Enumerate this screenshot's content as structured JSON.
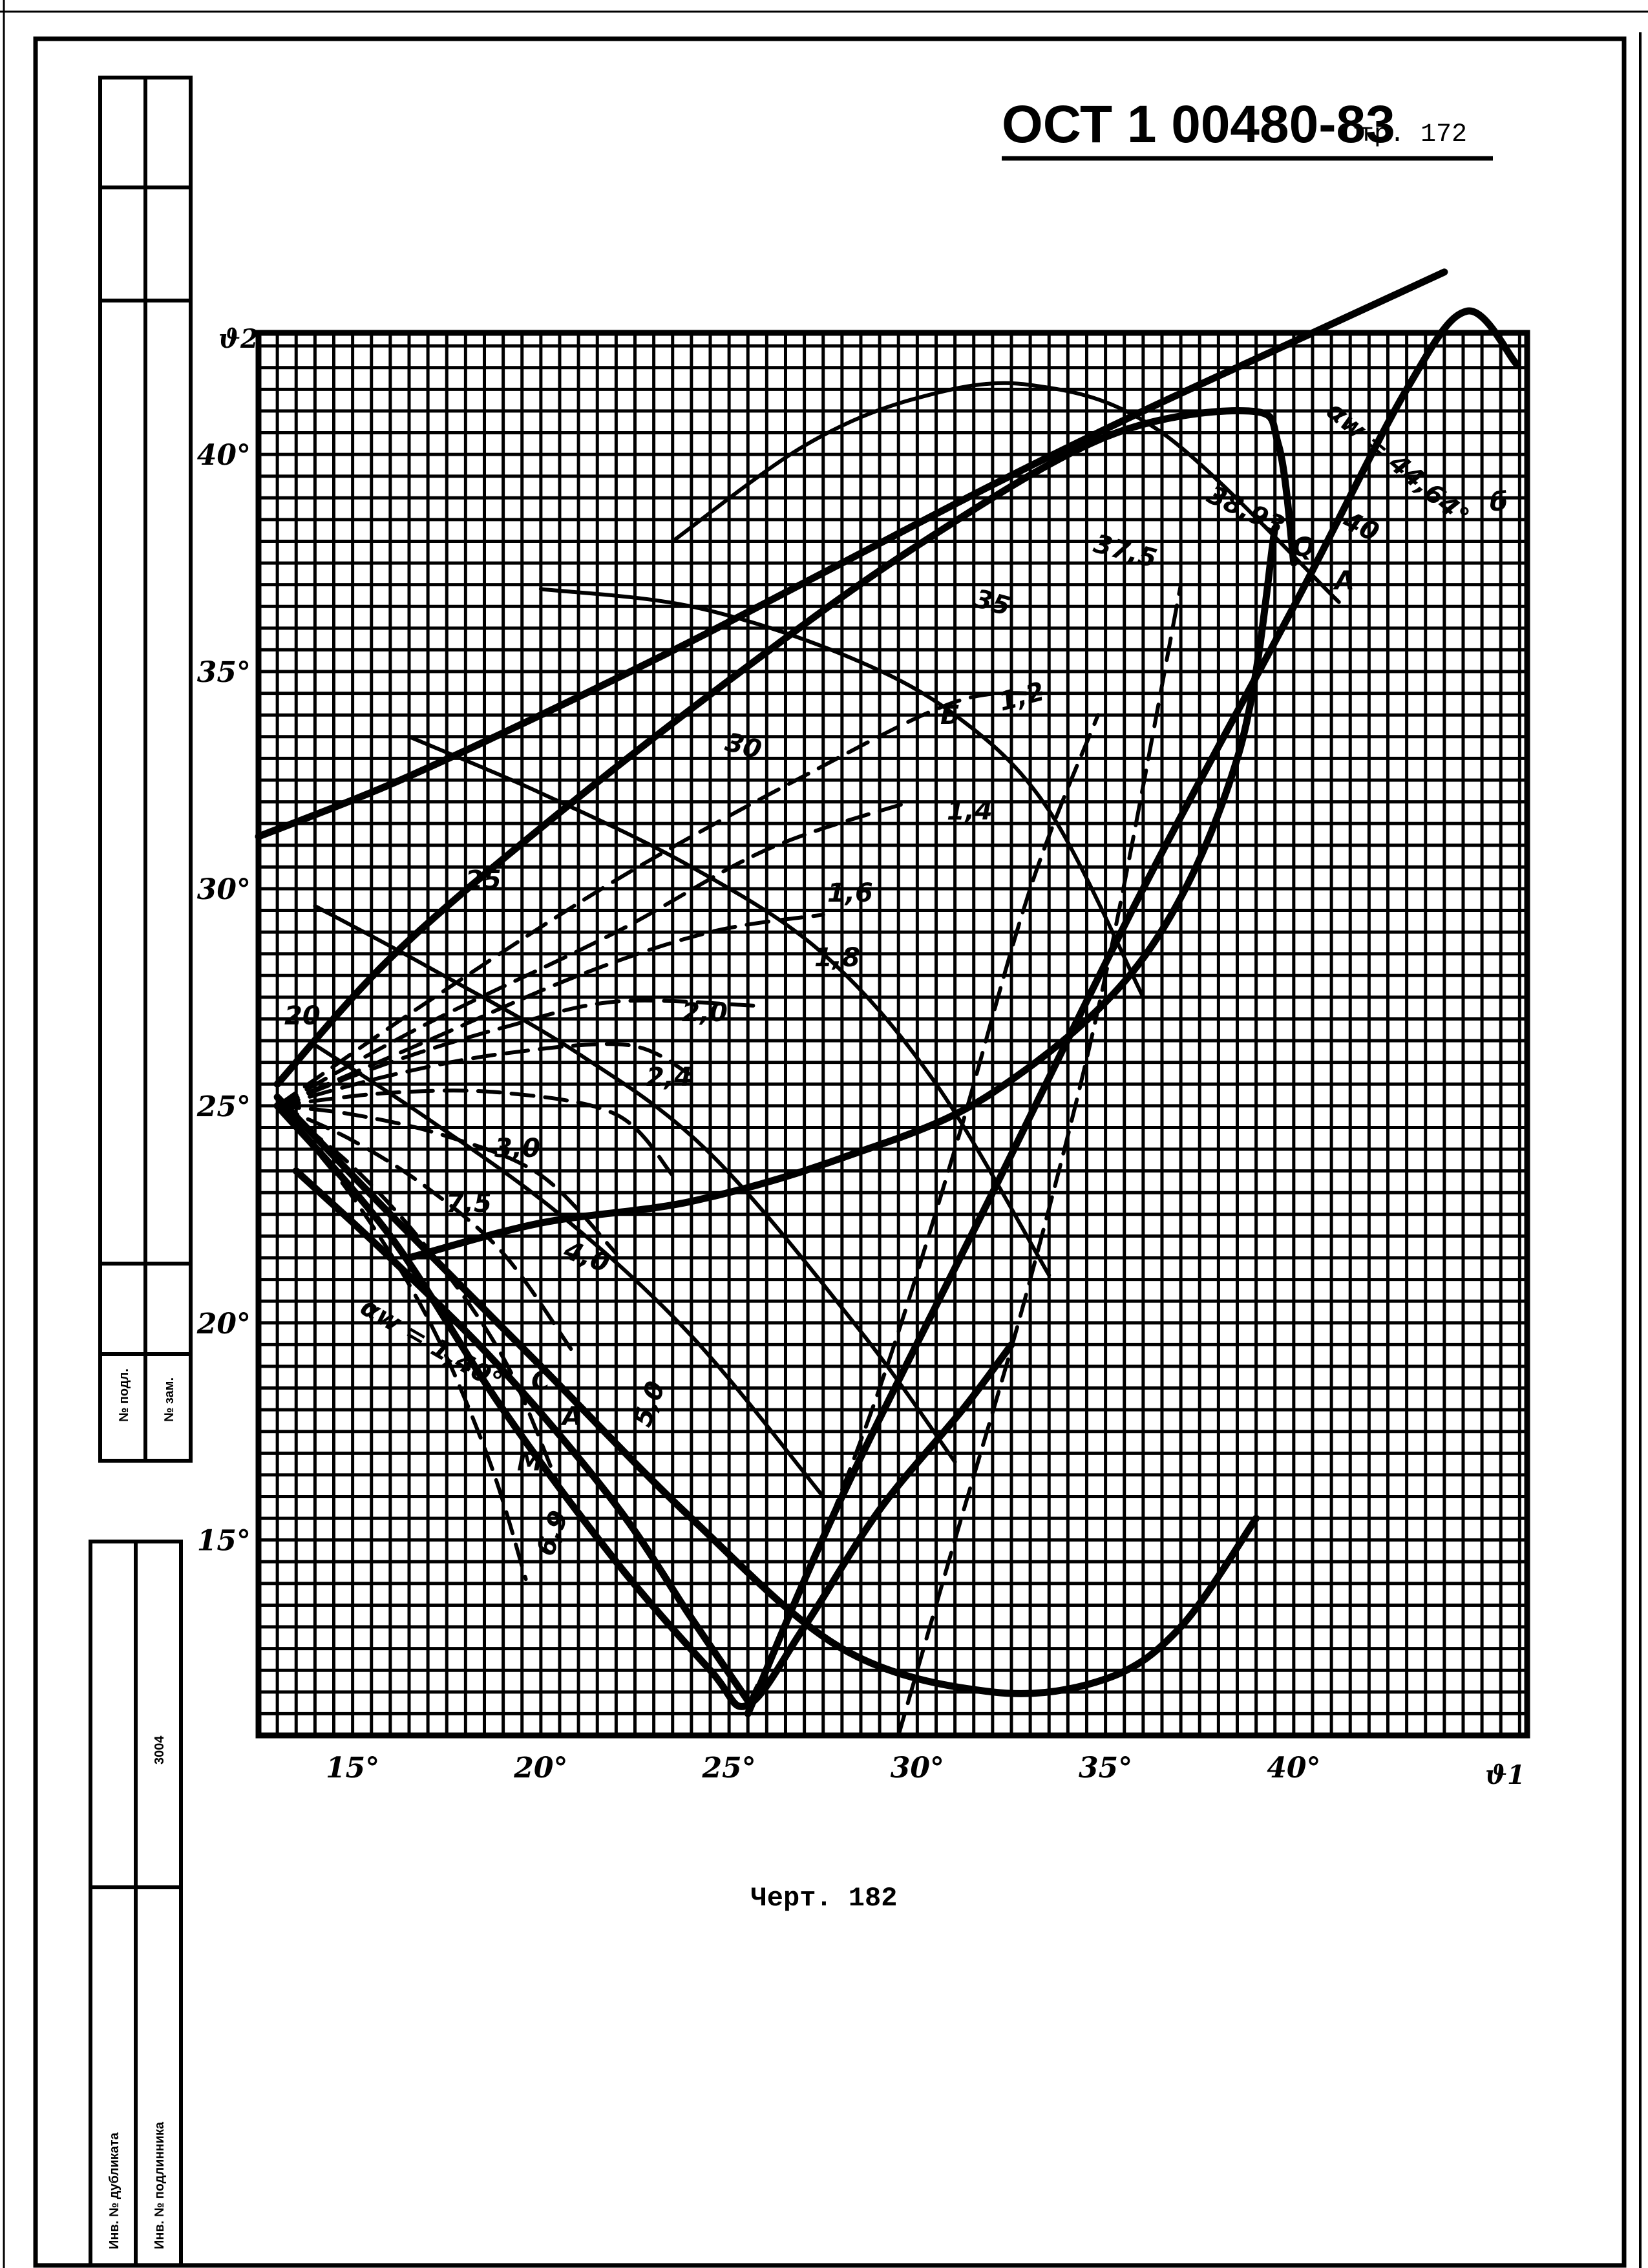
{
  "header": {
    "doc_code": "ОСТ 1 00480-83",
    "page_label": "Стр. 172"
  },
  "side_stamp": {
    "top_cells": [
      "№ подл.",
      "№ зам."
    ],
    "bottom_cells": [
      "Инв. № дубликата",
      "Инв. № подлинника"
    ],
    "number": "3004"
  },
  "caption": "Черт. 182",
  "chart_data": {
    "type": "line",
    "title": "",
    "xlabel": "ϑ1",
    "ylabel": "ϑ2",
    "xlim": [
      12.5,
      46.2
    ],
    "ylim": [
      10.5,
      42.8
    ],
    "grid": true,
    "x_ticks": [
      15,
      20,
      25,
      30,
      35,
      40
    ],
    "y_ticks": [
      15,
      20,
      25,
      30,
      35,
      40
    ],
    "x_tick_labels": [
      "15°",
      "20°",
      "25°",
      "30°",
      "35°",
      "40°"
    ],
    "y_tick_labels": [
      "15°",
      "20°",
      "25°",
      "30°",
      "35°",
      "40°"
    ],
    "series": [
      {
        "name": "αw = 44,64°",
        "style": "bold",
        "x": [
          12.5,
          16,
          20,
          24,
          28,
          32,
          36,
          40,
          44
        ],
        "y": [
          31.2,
          32.4,
          34.0,
          35.7,
          37.5,
          39.3,
          41.0,
          42.6,
          44.2
        ]
      },
      {
        "name": "38,93",
        "style": "bold",
        "x": [
          13.0,
          16,
          20,
          25,
          30,
          35,
          38.8,
          39.6,
          40.0
        ],
        "y": [
          25.5,
          28.4,
          31.4,
          34.8,
          37.9,
          40.4,
          41.0,
          40.2,
          37.5
        ]
      },
      {
        "name": "",
        "style": "bold",
        "x": [
          13.0,
          16,
          20,
          24,
          28,
          32,
          35,
          37,
          39.0
        ],
        "y": [
          25.2,
          22.5,
          19.0,
          15.5,
          12.5,
          11.5,
          11.8,
          13.0,
          15.5
        ]
      },
      {
        "name": "",
        "style": "bold",
        "x": [
          25.5,
          28,
          32,
          36,
          40,
          43,
          44.6,
          45.9
        ],
        "y": [
          11.0,
          16.0,
          23.0,
          30.0,
          36.5,
          41.5,
          43.3,
          42.1
        ]
      },
      {
        "name": "",
        "style": "bold",
        "x": [
          13.0,
          16,
          19,
          22,
          24.5,
          25.5,
          27,
          29,
          31.2,
          32.5
        ],
        "y": [
          25.0,
          22.0,
          18.0,
          14.5,
          12.0,
          11.2,
          13.0,
          15.7,
          18.0,
          19.5
        ]
      },
      {
        "name": "37,5",
        "style": "bold",
        "x": [
          16.5,
          20,
          24,
          28,
          32,
          36,
          38.5,
          39.5
        ],
        "y": [
          21.5,
          22.3,
          22.8,
          23.8,
          25.3,
          28.4,
          33.0,
          38.3
        ]
      },
      {
        "name": "",
        "style": "dash",
        "x": [
          29.5,
          31,
          33,
          35,
          37.0
        ],
        "y": [
          10.5,
          15.0,
          21.0,
          28.0,
          37.0
        ]
      },
      {
        "name": "",
        "style": "dash",
        "x": [
          25.5,
          27,
          29,
          31,
          33,
          34.8
        ],
        "y": [
          11.2,
          14.0,
          18.5,
          24.0,
          30.0,
          34.0
        ]
      },
      {
        "name": "1,2",
        "style": "dash",
        "x": [
          13.0,
          17,
          22,
          27,
          31,
          33.3
        ],
        "y": [
          25.0,
          27.4,
          30.2,
          32.6,
          34.3,
          34.5
        ]
      },
      {
        "name": "1,4",
        "style": "dash",
        "x": [
          13.0,
          17,
          22,
          26,
          29.8
        ],
        "y": [
          25.0,
          26.9,
          29.0,
          30.9,
          32.0
        ]
      },
      {
        "name": "1,6",
        "style": "dash",
        "x": [
          13.0,
          17,
          21,
          24.5,
          27.5
        ],
        "y": [
          25.0,
          26.5,
          28.0,
          29.0,
          29.4
        ]
      },
      {
        "name": "1,8",
        "style": "dash",
        "x": [
          13.0,
          16,
          19,
          22,
          25.8
        ],
        "y": [
          25.0,
          26.0,
          26.8,
          27.4,
          27.3
        ]
      },
      {
        "name": "2,0",
        "style": "dash",
        "x": [
          13.0,
          16,
          19,
          22.3,
          24.0
        ],
        "y": [
          25.0,
          25.7,
          26.2,
          26.4,
          25.7
        ]
      },
      {
        "name": "2,4",
        "style": "dash",
        "x": [
          13.0,
          16,
          19,
          22,
          23.5
        ],
        "y": [
          25.0,
          25.3,
          25.3,
          24.8,
          23.4
        ]
      },
      {
        "name": "3,0",
        "style": "dash",
        "x": [
          13.0,
          15,
          17.5,
          20,
          22.0
        ],
        "y": [
          25.0,
          24.8,
          24.3,
          23.4,
          21.6
        ]
      },
      {
        "name": "4,0",
        "style": "dash",
        "x": [
          13.0,
          15,
          17,
          19,
          20.8
        ],
        "y": [
          25.0,
          24.2,
          23.1,
          21.6,
          19.4
        ]
      },
      {
        "name": "5,0",
        "style": "dash",
        "x": [
          13.0,
          15,
          17,
          19,
          20.4
        ],
        "y": [
          25.0,
          23.6,
          21.7,
          19.2,
          16.4
        ]
      },
      {
        "name": "6,9",
        "style": "dash",
        "x": [
          13.0,
          15,
          17,
          18.6,
          19.6
        ],
        "y": [
          25.0,
          22.9,
          20.1,
          16.9,
          14.1
        ]
      },
      {
        "name": "αw = 1,40°",
        "style": "bold",
        "x": [
          13.5,
          16,
          19,
          22,
          24,
          25.5
        ],
        "y": [
          23.5,
          21.5,
          18.9,
          15.8,
          13.2,
          11.3
        ]
      },
      {
        "name": "",
        "style": "thin",
        "x": [
          23.5,
          27,
          30,
          33,
          36.5,
          41.2
        ],
        "y": [
          38.0,
          40.2,
          41.3,
          41.6,
          40.5,
          36.6
        ]
      },
      {
        "name": "",
        "style": "thin",
        "x": [
          20.0,
          24,
          28,
          31,
          33.5,
          36
        ],
        "y": [
          36.9,
          36.5,
          35.4,
          34.0,
          31.8,
          27.5
        ]
      },
      {
        "name": "",
        "style": "thin",
        "x": [
          16.5,
          20,
          24,
          27.5,
          30.5,
          33.5
        ],
        "y": [
          33.5,
          32.2,
          30.5,
          28.5,
          25.5,
          21.1
        ]
      },
      {
        "name": "",
        "style": "thin",
        "x": [
          14.0,
          17,
          21,
          24.5,
          28.5,
          31.0
        ],
        "y": [
          29.6,
          28.2,
          26.2,
          23.9,
          19.8,
          16.8
        ]
      },
      {
        "name": "",
        "style": "thin",
        "x": [
          14.0,
          17,
          20.5,
          24,
          27.5
        ],
        "y": [
          26.4,
          24.7,
          22.5,
          19.7,
          16.0
        ]
      }
    ],
    "curve_labels": [
      "20",
      "25",
      "30",
      "35",
      "37,5",
      "40",
      "38,93",
      "Q",
      "A",
      "αw = 44,64°",
      "1,2",
      "1,4",
      "1,6",
      "1,8",
      "2,0",
      "2,4",
      "3,0",
      "4,0",
      "5,0",
      "6,9",
      "7,5",
      "αw = 1,40°",
      "C",
      "A",
      "M",
      "Б",
      "б"
    ]
  }
}
